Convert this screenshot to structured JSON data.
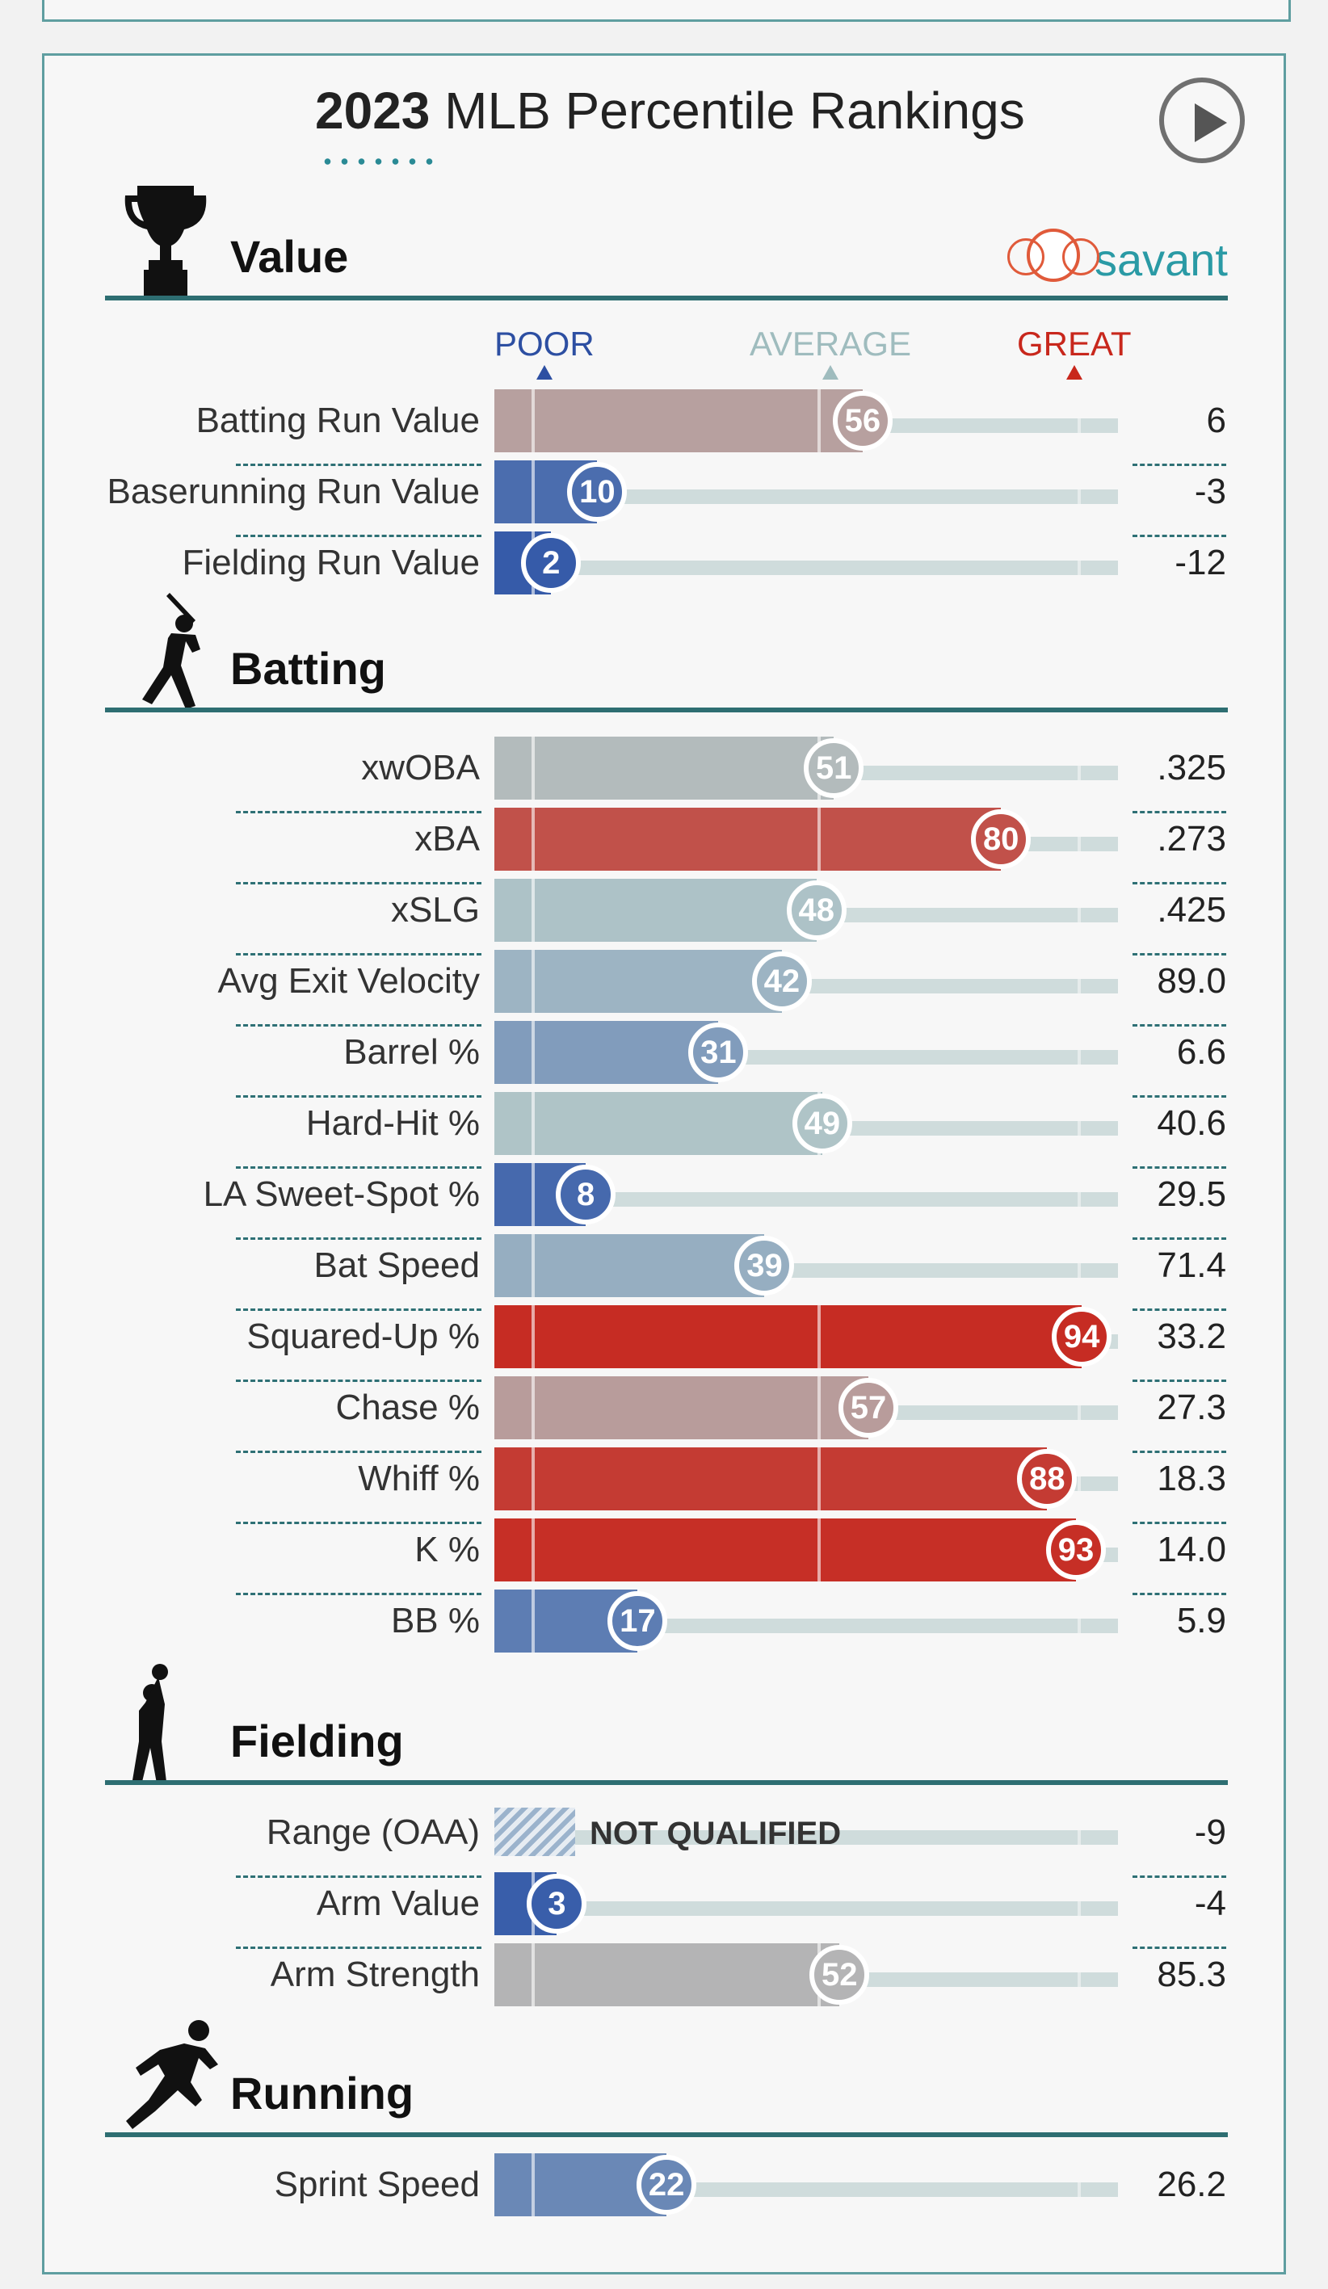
{
  "header": {
    "title_year": "2023",
    "title_rest": " MLB Percentile Rankings",
    "brand": "savant"
  },
  "scale": {
    "poor": "POOR",
    "average": "AVERAGE",
    "great": "GREAT"
  },
  "colors": {
    "teal": "#2e6e72",
    "poor": "#3157a8",
    "great": "#c8271c"
  },
  "sections": [
    {
      "key": "value",
      "title": "Value",
      "icon": "trophy-icon"
    },
    {
      "key": "batting",
      "title": "Batting",
      "icon": "batter-icon"
    },
    {
      "key": "fielding",
      "title": "Fielding",
      "icon": "fielder-icon"
    },
    {
      "key": "running",
      "title": "Running",
      "icon": "runner-icon"
    }
  ],
  "not_qualified_label": "NOT QUALIFIED",
  "chart_data": {
    "type": "bar",
    "title": "2023 MLB Percentile Rankings",
    "xlim": [
      0,
      100
    ],
    "rows": [
      {
        "section": "value",
        "name": "Batting Run Value",
        "percentile": 56,
        "stat": "6"
      },
      {
        "section": "value",
        "name": "Baserunning Run Value",
        "percentile": 10,
        "stat": "-3"
      },
      {
        "section": "value",
        "name": "Fielding Run Value",
        "percentile": 2,
        "stat": "-12"
      },
      {
        "section": "batting",
        "name": "xwOBA",
        "percentile": 51,
        "stat": ".325"
      },
      {
        "section": "batting",
        "name": "xBA",
        "percentile": 80,
        "stat": ".273"
      },
      {
        "section": "batting",
        "name": "xSLG",
        "percentile": 48,
        "stat": ".425"
      },
      {
        "section": "batting",
        "name": "Avg Exit Velocity",
        "percentile": 42,
        "stat": "89.0"
      },
      {
        "section": "batting",
        "name": "Barrel %",
        "percentile": 31,
        "stat": "6.6"
      },
      {
        "section": "batting",
        "name": "Hard-Hit %",
        "percentile": 49,
        "stat": "40.6"
      },
      {
        "section": "batting",
        "name": "LA Sweet-Spot %",
        "percentile": 8,
        "stat": "29.5"
      },
      {
        "section": "batting",
        "name": "Bat Speed",
        "percentile": 39,
        "stat": "71.4"
      },
      {
        "section": "batting",
        "name": "Squared-Up %",
        "percentile": 94,
        "stat": "33.2"
      },
      {
        "section": "batting",
        "name": "Chase %",
        "percentile": 57,
        "stat": "27.3"
      },
      {
        "section": "batting",
        "name": "Whiff %",
        "percentile": 88,
        "stat": "18.3"
      },
      {
        "section": "batting",
        "name": "K %",
        "percentile": 93,
        "stat": "14.0"
      },
      {
        "section": "batting",
        "name": "BB %",
        "percentile": 17,
        "stat": "5.9"
      },
      {
        "section": "fielding",
        "name": "Range (OAA)",
        "percentile": null,
        "stat": "-9"
      },
      {
        "section": "fielding",
        "name": "Arm Value",
        "percentile": 3,
        "stat": "-4"
      },
      {
        "section": "fielding",
        "name": "Arm Strength",
        "percentile": 52,
        "stat": "85.3"
      },
      {
        "section": "running",
        "name": "Sprint Speed",
        "percentile": 22,
        "stat": "26.2"
      }
    ]
  }
}
